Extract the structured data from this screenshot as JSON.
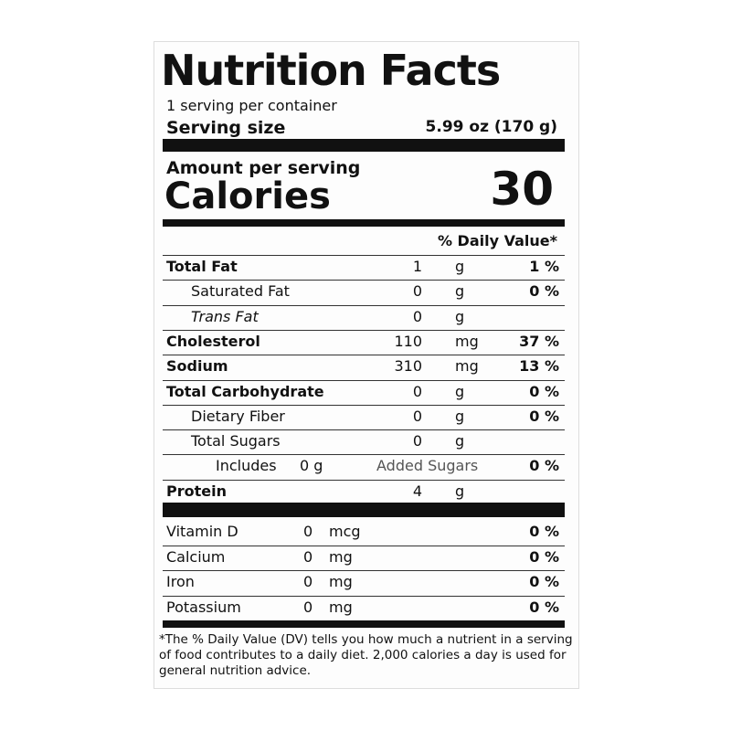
{
  "header": {
    "title": "Nutrition Facts",
    "servings": "1 serving per container",
    "serving_size_label": "Serving size",
    "serving_size": "5.99 oz (170 g)"
  },
  "calories": {
    "amount_label": "Amount per serving",
    "label": "Calories",
    "value": "30"
  },
  "daily_value_heading": "% Daily Value*",
  "nutrients": [
    {
      "name": "Total Fat",
      "amount": "1",
      "unit": "g",
      "dv": "1 %",
      "bold": true,
      "indent": 0
    },
    {
      "name": "Saturated Fat",
      "amount": "0",
      "unit": "g",
      "dv": "0 %",
      "bold": false,
      "indent": 1
    },
    {
      "name": "Trans Fat",
      "amount": "0",
      "unit": "g",
      "bold": false,
      "indent": 1,
      "italic": true
    },
    {
      "name": "Cholesterol",
      "amount": "110",
      "unit": "mg",
      "dv": "37 %",
      "bold": true,
      "indent": 0
    },
    {
      "name": "Sodium",
      "amount": "310",
      "unit": "mg",
      "dv": "13 %",
      "bold": true,
      "indent": 0
    },
    {
      "name": "Total Carbohydrate",
      "amount": "0",
      "unit": "g",
      "dv": "0 %",
      "bold": true,
      "indent": 0
    },
    {
      "name": "Dietary Fiber",
      "amount": "0",
      "unit": "g",
      "dv": "0 %",
      "bold": false,
      "indent": 1
    },
    {
      "name": "Total Sugars",
      "amount": "0",
      "unit": "g",
      "bold": false,
      "indent": 1
    },
    {
      "prefix": "Includes",
      "amount": "0 g",
      "name": "Added Sugars",
      "dv": "0 %",
      "bold": false,
      "indent": 2
    },
    {
      "name": "Protein",
      "amount": "4",
      "unit": "g",
      "bold": true,
      "indent": 0
    }
  ],
  "vitamins": [
    {
      "name": "Vitamin D",
      "amount": "0",
      "unit": "mcg",
      "dv": "0 %"
    },
    {
      "name": "Calcium",
      "amount": "0",
      "unit": "mg",
      "dv": "0 %"
    },
    {
      "name": "Iron",
      "amount": "0",
      "unit": "mg",
      "dv": "0 %"
    },
    {
      "name": "Potassium",
      "amount": "0",
      "unit": "mg",
      "dv": "0 %"
    }
  ],
  "footnote": "*The % Daily Value (DV) tells you how much a nutrient in a serving of food contributes to a daily diet. 2,000 calories a day is used for general nutrition advice."
}
